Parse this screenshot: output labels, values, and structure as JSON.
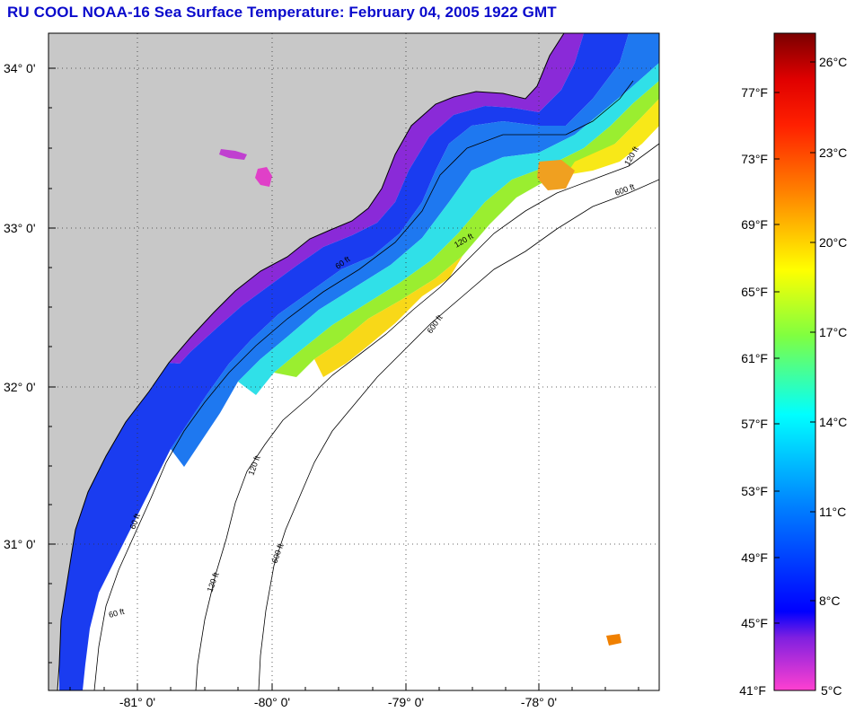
{
  "header": {
    "title": "RU COOL  NOAA-16  Sea Surface Temperature:  February 04, 2005 1922 GMT"
  },
  "map": {
    "lat_labels": [
      "34° 0'",
      "33° 0'",
      "32° 0'",
      "31° 0'"
    ],
    "lon_labels": [
      "-81° 0'",
      "-80° 0'",
      "-79° 0'",
      "-78° 0'"
    ],
    "contour_labels": {
      "c60": "60 ft",
      "c120": "120 ft",
      "c600": "600 ft"
    },
    "colors": {
      "land": "#c8c8c8",
      "cloud": "#ffffff",
      "coastline": "#000000"
    }
  },
  "colorbar": {
    "fahrenheit": [
      "41°F",
      "45°F",
      "49°F",
      "53°F",
      "57°F",
      "61°F",
      "65°F",
      "69°F",
      "73°F",
      "77°F"
    ],
    "celsius": [
      "5°C",
      "8°C",
      "11°C",
      "14°C",
      "17°C",
      "20°C",
      "23°C",
      "26°C"
    ]
  }
}
